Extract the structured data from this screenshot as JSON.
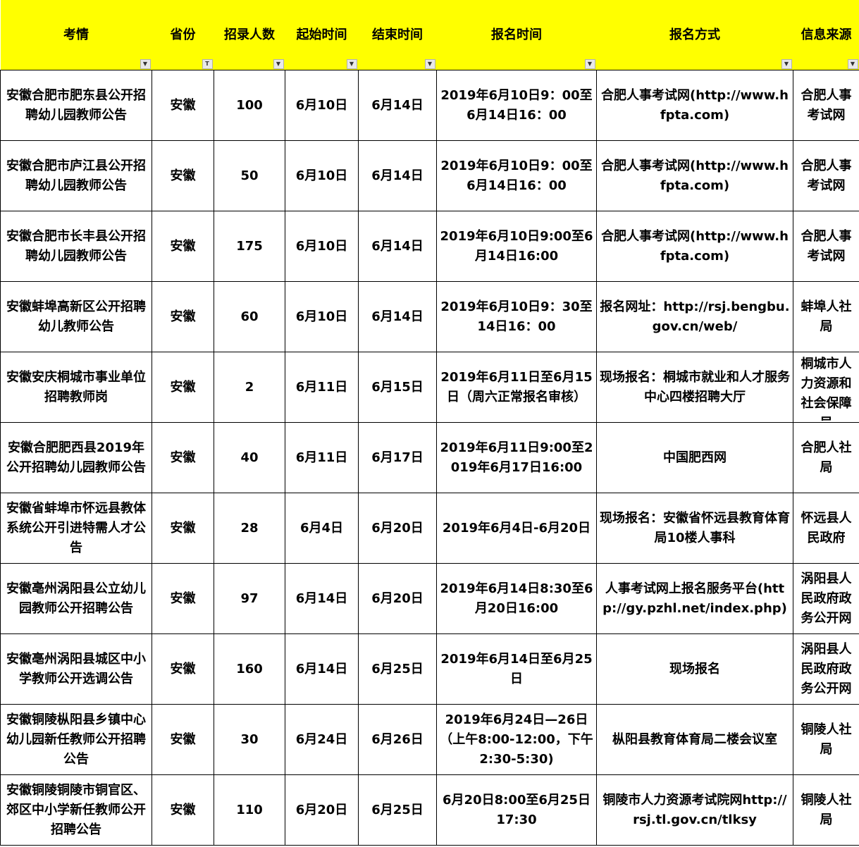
{
  "header_color": "#ffff00",
  "columns": [
    {
      "label": "考情",
      "filter": "dropdown"
    },
    {
      "label": "省份",
      "filter": "filtered"
    },
    {
      "label": "招录人数",
      "filter": "dropdown"
    },
    {
      "label": "起始时间",
      "filter": "dropdown"
    },
    {
      "label": "结束时间",
      "filter": "dropdown"
    },
    {
      "label": "报名时间",
      "filter": "dropdown"
    },
    {
      "label": "报名方式",
      "filter": "dropdown"
    },
    {
      "label": "信息来源",
      "filter": "dropdown"
    }
  ],
  "rows": [
    [
      "安徽合肥市肥东县公开招聘幼儿园教师公告",
      "安徽",
      "100",
      "6月10日",
      "6月14日",
      "2019年6月10日9：00至6月14日16：00",
      "合肥人事考试网(http://www.hfpta.com)",
      "合肥人事考试网"
    ],
    [
      "安徽合肥市庐江县公开招聘幼儿园教师公告",
      "安徽",
      "50",
      "6月10日",
      "6月14日",
      "2019年6月10日9：00至6月14日16：00",
      "合肥人事考试网(http://www.hfpta.com)",
      "合肥人事考试网"
    ],
    [
      "安徽合肥市长丰县公开招聘幼儿园教师公告",
      "安徽",
      "175",
      "6月10日",
      "6月14日",
      "2019年6月10日9:00至6月14日16:00",
      "合肥人事考试网(http://www.hfpta.com)",
      "合肥人事考试网"
    ],
    [
      "安徽蚌埠高新区公开招聘幼儿教师公告",
      "安徽",
      "60",
      "6月10日",
      "6月14日",
      "2019年6月10日9：30至14日16：00",
      "报名网址：http://rsj.bengbu.gov.cn/web/",
      "蚌埠人社局"
    ],
    [
      "安徽安庆桐城市事业单位招聘教师岗",
      "安徽",
      "2",
      "6月11日",
      "6月15日",
      "2019年6月11日至6月15日（周六正常报名审核）",
      "现场报名：桐城市就业和人才服务中心四楼招聘大厅",
      "桐城市人力资源和社会保障局"
    ],
    [
      "安徽合肥肥西县2019年公开招聘幼儿园教师公告",
      "安徽",
      "40",
      "6月11日",
      "6月17日",
      "2019年6月11日9:00至2019年6月17日16:00",
      "中国肥西网",
      "合肥人社局"
    ],
    [
      "安徽省蚌埠市怀远县教体系统公开引进特需人才公告",
      "安徽",
      "28",
      "6月4日",
      "6月20日",
      "2019年6月4日-6月20日",
      "现场报名：安徽省怀远县教育体育局10楼人事科",
      "怀远县人民政府"
    ],
    [
      "安徽亳州涡阳县公立幼儿园教师公开招聘公告",
      "安徽",
      "97",
      "6月14日",
      "6月20日",
      "2019年6月14日8:30至6月20日16:00",
      "人事考试网上报名服务平台(http://gy.pzhl.net/index.php)",
      "涡阳县人民政府政务公开网"
    ],
    [
      "安徽亳州涡阳县城区中小学教师公开选调公告",
      "安徽",
      "160",
      "6月14日",
      "6月25日",
      "2019年6月14日至6月25日",
      "现场报名",
      "涡阳县人民政府政务公开网"
    ],
    [
      "安徽铜陵枞阳县乡镇中心幼儿园新任教师公开招聘公告",
      "安徽",
      "30",
      "6月24日",
      "6月26日",
      "2019年6月24日—26日（上午8:00-12:00，下午2:30-5:30)",
      "枞阳县教育体育局二楼会议室",
      "铜陵人社局"
    ],
    [
      "安徽铜陵铜陵市铜官区、郊区中小学新任教师公开招聘公告",
      "安徽",
      "110",
      "6月20日",
      "6月25日",
      "6月20日8:00至6月25日17:30",
      "铜陵市人力资源考试院网http://rsj.tl.gov.cn/tlksy",
      "铜陵人社局"
    ]
  ]
}
